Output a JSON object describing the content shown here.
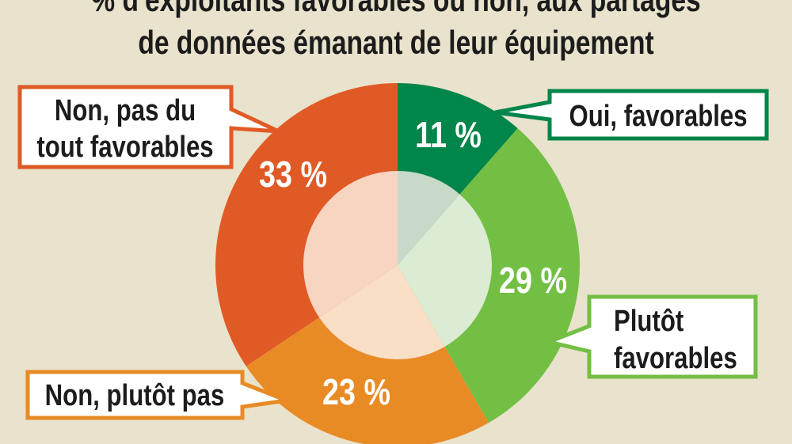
{
  "chart_data": {
    "type": "pie",
    "variant": "donut",
    "title": [
      "% d'exploitants favorables ou non, aux partages",
      "de données émanant de leur équipement"
    ],
    "categories": [
      "Oui, favorables",
      "Plutôt favorables",
      "Non, plutôt pas",
      "Non, pas du tout favorables"
    ],
    "values": [
      11,
      29,
      23,
      33
    ],
    "value_labels": [
      "11 %",
      "29 %",
      "23 %",
      "33 %"
    ],
    "colors": [
      "#00854a",
      "#72bf44",
      "#e88b25",
      "#e05a26"
    ],
    "inner_colors": [
      "#c8d9c9",
      "#dcebd3",
      "#f8dfc6",
      "#f8d5c0"
    ],
    "legend_placement": "callouts around chart",
    "background": "#e9e2cc"
  },
  "callouts": [
    {
      "lines": [
        "Oui, favorables"
      ]
    },
    {
      "lines": [
        "Plutôt",
        "favorables"
      ]
    },
    {
      "lines": [
        "Non, plutôt pas"
      ]
    },
    {
      "lines": [
        "Non, pas du",
        "tout favorables"
      ]
    }
  ]
}
